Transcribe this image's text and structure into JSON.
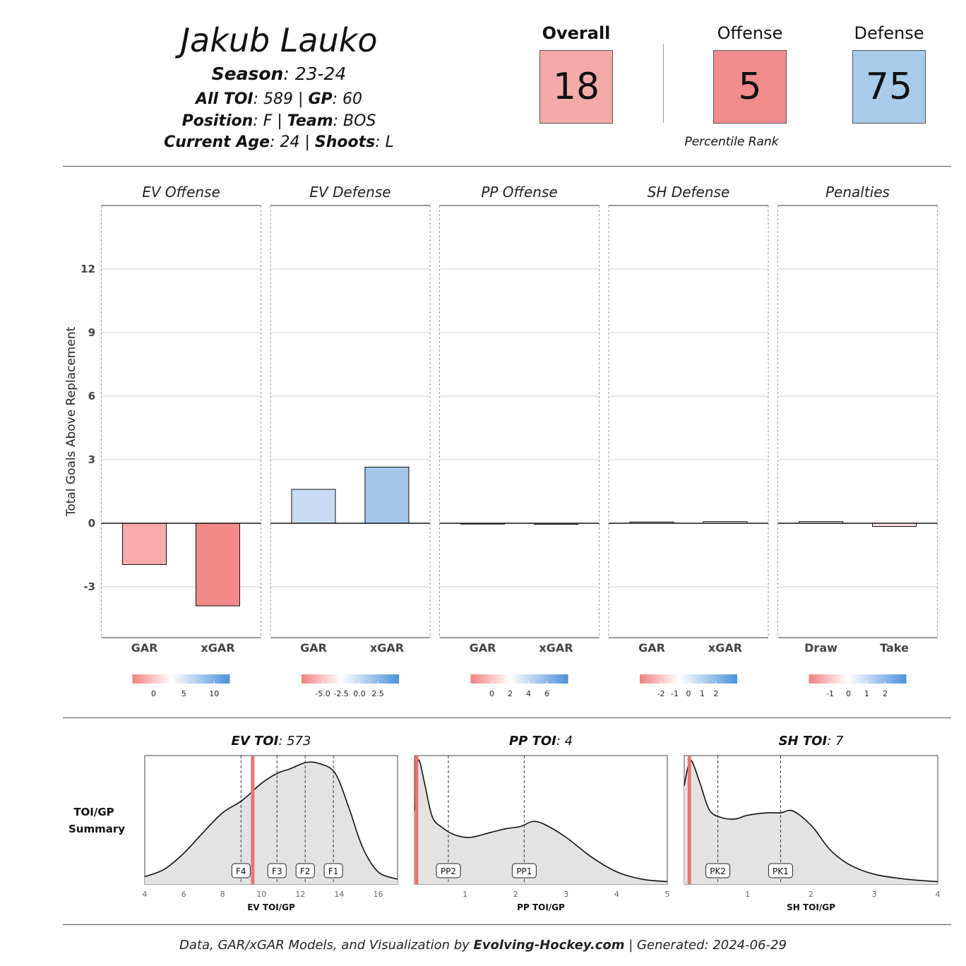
{
  "player": {
    "name": "Jakub Lauko",
    "season_label": "Season",
    "season": "23-24",
    "toi_label": "All TOI",
    "toi": "589",
    "gp_label": "GP",
    "gp": "60",
    "position_label": "Position",
    "position": "F",
    "team_label": "Team",
    "team": "BOS",
    "age_label": "Current Age",
    "age": "24",
    "shoots_label": "Shoots",
    "shoots": "L"
  },
  "ranks": {
    "overall_label": "Overall",
    "overall": "18",
    "overall_color": "#f5aaaa",
    "offense_label": "Offense",
    "offense": "5",
    "offense_color": "#f08c8c",
    "defense_label": "Defense",
    "defense": "75",
    "defense_color": "#a9cbea",
    "caption": "Percentile Rank"
  },
  "chart_data": [
    {
      "type": "bar",
      "ylabel": "Total Goals Above Replacement",
      "ylim": [
        -5.4,
        15.0
      ],
      "yticks": [
        -3,
        0,
        3,
        6,
        9,
        12
      ],
      "panels": [
        {
          "title": "EV Offense",
          "categories": [
            "GAR",
            "xGAR"
          ],
          "values": [
            -1.95,
            -3.9
          ],
          "colors": [
            "#f9aaaa",
            "#f28a8a"
          ],
          "legend": {
            "ticks": [
              "0",
              "5",
              "10"
            ]
          }
        },
        {
          "title": "EV Defense",
          "categories": [
            "GAR",
            "xGAR"
          ],
          "values": [
            1.6,
            2.65
          ],
          "colors": [
            "#c8dbf3",
            "#a6c6ea"
          ],
          "legend": {
            "ticks": [
              "-5.0",
              "-2.5",
              "0.0",
              "2.5"
            ]
          }
        },
        {
          "title": "PP Offense",
          "categories": [
            "GAR",
            "xGAR"
          ],
          "values": [
            -0.04,
            -0.05
          ],
          "colors": [
            "#fde6e6",
            "#fde6e6"
          ],
          "legend": {
            "ticks": [
              "0",
              "2",
              "4",
              "6"
            ]
          }
        },
        {
          "title": "SH Defense",
          "categories": [
            "GAR",
            "xGAR"
          ],
          "values": [
            0.06,
            0.08
          ],
          "colors": [
            "#eef4fb",
            "#eef4fb"
          ],
          "legend": {
            "ticks": [
              "-2",
              "-1",
              "0",
              "1",
              "2"
            ]
          }
        },
        {
          "title": "Penalties",
          "categories": [
            "Draw",
            "Take"
          ],
          "values": [
            0.08,
            -0.15
          ],
          "colors": [
            "#eef4fb",
            "#fde6e6"
          ],
          "legend": {
            "ticks": [
              "-1",
              "0",
              "1",
              "2"
            ]
          }
        }
      ]
    },
    {
      "type": "area",
      "row_label_1": "TOI/GP",
      "row_label_2": "Summary",
      "panels": [
        {
          "title_label": "EV TOI",
          "title_value": "573",
          "xlabel": "EV TOI/GP",
          "xlim": [
            4,
            17
          ],
          "xticks": [
            4,
            6,
            8,
            10,
            12,
            14,
            16
          ],
          "player_value": 9.55,
          "markers": [
            {
              "label": "F4",
              "x": 8.95
            },
            {
              "label": "F3",
              "x": 10.8
            },
            {
              "label": "F2",
              "x": 12.25
            },
            {
              "label": "F1",
              "x": 13.7
            }
          ],
          "density": [
            [
              4,
              0.06
            ],
            [
              5,
              0.12
            ],
            [
              6,
              0.25
            ],
            [
              7,
              0.42
            ],
            [
              8,
              0.58
            ],
            [
              9,
              0.68
            ],
            [
              10,
              0.82
            ],
            [
              10.8,
              0.9
            ],
            [
              11.5,
              0.94
            ],
            [
              12.3,
              0.99
            ],
            [
              13,
              0.98
            ],
            [
              13.8,
              0.9
            ],
            [
              14.5,
              0.62
            ],
            [
              15.2,
              0.3
            ],
            [
              16,
              0.1
            ],
            [
              17,
              0.04
            ]
          ]
        },
        {
          "title_label": "PP TOI",
          "title_value": "4",
          "xlabel": "PP TOI/GP",
          "xlim": [
            0,
            5
          ],
          "xticks": [
            1,
            2,
            3,
            4,
            5
          ],
          "player_value": 0.04,
          "markers": [
            {
              "label": "PP2",
              "x": 0.67
            },
            {
              "label": "PP1",
              "x": 2.17
            }
          ],
          "density": [
            [
              0,
              0.6
            ],
            [
              0.05,
              0.95
            ],
            [
              0.1,
              1.0
            ],
            [
              0.2,
              0.82
            ],
            [
              0.35,
              0.55
            ],
            [
              0.55,
              0.46
            ],
            [
              0.8,
              0.4
            ],
            [
              1.1,
              0.38
            ],
            [
              1.5,
              0.42
            ],
            [
              1.8,
              0.45
            ],
            [
              2.1,
              0.47
            ],
            [
              2.35,
              0.51
            ],
            [
              2.6,
              0.48
            ],
            [
              3,
              0.38
            ],
            [
              3.5,
              0.22
            ],
            [
              4,
              0.1
            ],
            [
              4.5,
              0.04
            ],
            [
              5,
              0.02
            ]
          ]
        },
        {
          "title_label": "SH TOI",
          "title_value": "7",
          "xlabel": "SH TOI/GP",
          "xlim": [
            0,
            4
          ],
          "xticks": [
            1,
            2,
            3,
            4
          ],
          "player_value": 0.08,
          "markers": [
            {
              "label": "PK2",
              "x": 0.53
            },
            {
              "label": "PK1",
              "x": 1.52
            }
          ],
          "density": [
            [
              0,
              0.8
            ],
            [
              0.06,
              0.96
            ],
            [
              0.12,
              1.0
            ],
            [
              0.25,
              0.82
            ],
            [
              0.4,
              0.6
            ],
            [
              0.6,
              0.54
            ],
            [
              0.8,
              0.53
            ],
            [
              1.0,
              0.56
            ],
            [
              1.3,
              0.58
            ],
            [
              1.52,
              0.58
            ],
            [
              1.68,
              0.6
            ],
            [
              1.85,
              0.55
            ],
            [
              2.05,
              0.45
            ],
            [
              2.3,
              0.28
            ],
            [
              2.6,
              0.16
            ],
            [
              3,
              0.08
            ],
            [
              3.5,
              0.04
            ],
            [
              4,
              0.02
            ]
          ]
        }
      ]
    }
  ],
  "footer": {
    "prefix": "Data, GAR/xGAR Models, and Visualization by",
    "brand": "Evolving-Hockey.com",
    "generated": "| Generated: 2024-06-29"
  }
}
